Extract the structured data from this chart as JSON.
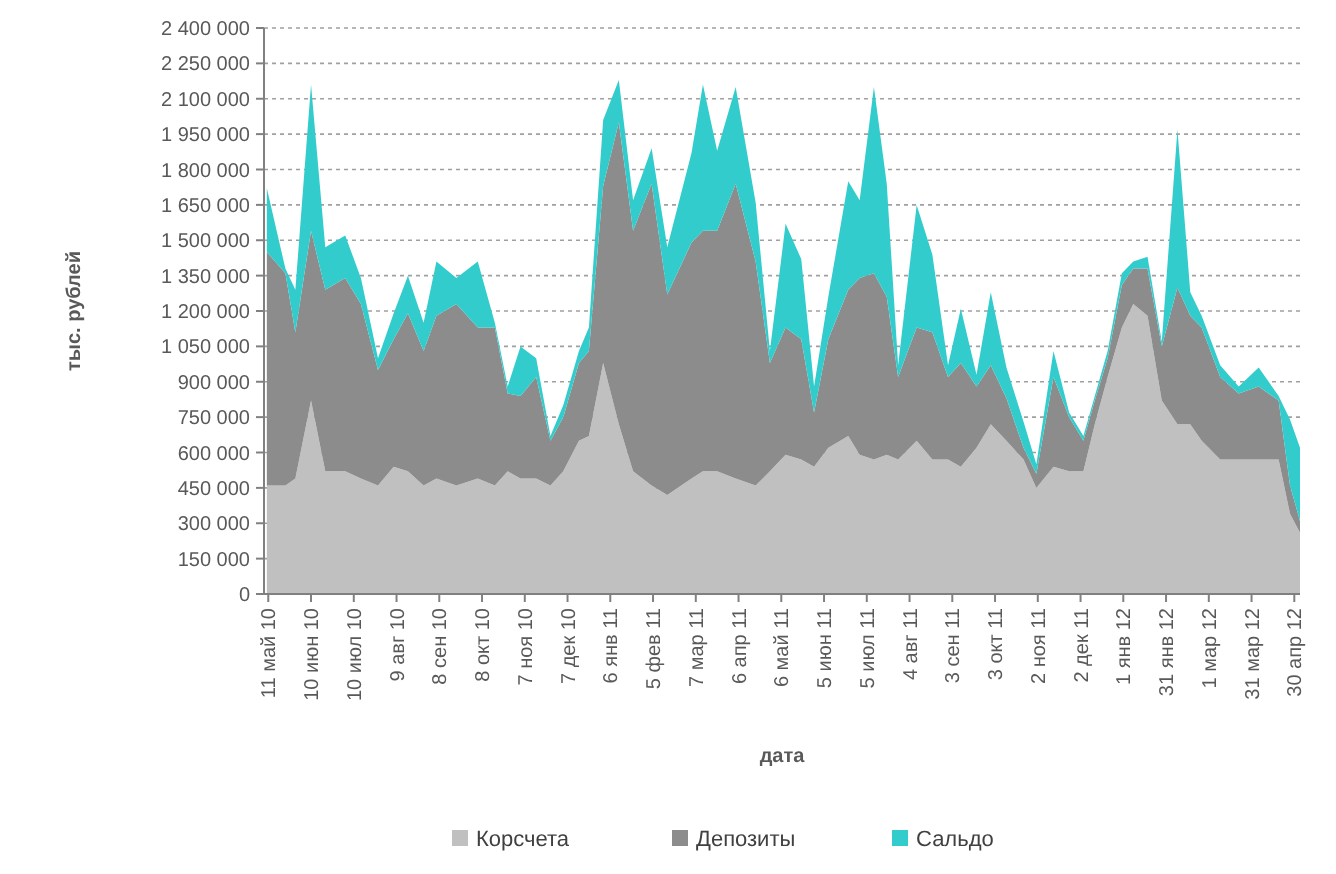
{
  "chart_data": {
    "type": "area",
    "stacked": true,
    "xlabel": "дата",
    "ylabel": "тыс. рублей",
    "x": [
      "2010-05-10",
      "2010-05-23",
      "2010-05-30",
      "2010-06-10",
      "2010-06-20",
      "2010-07-04",
      "2010-07-15",
      "2010-07-27",
      "2010-08-07",
      "2010-08-17",
      "2010-08-28",
      "2010-09-06",
      "2010-09-20",
      "2010-10-05",
      "2010-10-17",
      "2010-10-26",
      "2010-11-04",
      "2010-11-15",
      "2010-11-25",
      "2010-12-04",
      "2010-12-15",
      "2010-12-22",
      "2011-01-01",
      "2011-01-12",
      "2011-01-22",
      "2011-02-04",
      "2011-02-15",
      "2011-03-04",
      "2011-03-12",
      "2011-03-22",
      "2011-04-04",
      "2011-04-18",
      "2011-04-28",
      "2011-05-09",
      "2011-05-20",
      "2011-05-29",
      "2011-06-08",
      "2011-06-22",
      "2011-06-30",
      "2011-07-10",
      "2011-07-19",
      "2011-07-27",
      "2011-08-09",
      "2011-08-20",
      "2011-08-31",
      "2011-09-09",
      "2011-09-20",
      "2011-09-30",
      "2011-10-11",
      "2011-10-23",
      "2011-11-01",
      "2011-11-13",
      "2011-11-24",
      "2011-12-04",
      "2011-12-12",
      "2011-12-21",
      "2011-12-31",
      "2012-01-08",
      "2012-01-18",
      "2012-01-28",
      "2012-02-08",
      "2012-02-17",
      "2012-02-25",
      "2012-03-09",
      "2012-03-22",
      "2012-04-05",
      "2012-04-19",
      "2012-04-27",
      "2012-05-04"
    ],
    "series": [
      {
        "name": "Корсчета",
        "color": "#c0c0c0",
        "values": [
          460000,
          460000,
          490000,
          820000,
          520000,
          520000,
          490000,
          460000,
          540000,
          520000,
          460000,
          490000,
          460000,
          490000,
          460000,
          520000,
          490000,
          490000,
          460000,
          520000,
          650000,
          670000,
          980000,
          720000,
          520000,
          460000,
          420000,
          490000,
          520000,
          520000,
          490000,
          460000,
          520000,
          590000,
          570000,
          540000,
          620000,
          670000,
          590000,
          570000,
          590000,
          570000,
          650000,
          570000,
          570000,
          540000,
          620000,
          720000,
          650000,
          570000,
          450000,
          540000,
          520000,
          520000,
          720000,
          920000,
          1130000,
          1230000,
          1180000,
          820000,
          720000,
          720000,
          650000,
          570000,
          570000,
          570000,
          570000,
          340000,
          260000
        ]
      },
      {
        "name": "Депозиты",
        "color": "#8c8c8c",
        "values": [
          990000,
          900000,
          620000,
          720000,
          770000,
          820000,
          740000,
          490000,
          540000,
          670000,
          570000,
          690000,
          770000,
          640000,
          670000,
          330000,
          350000,
          430000,
          190000,
          230000,
          330000,
          360000,
          750000,
          1280000,
          1020000,
          1280000,
          850000,
          1000000,
          1020000,
          1020000,
          1250000,
          950000,
          460000,
          540000,
          510000,
          230000,
          460000,
          620000,
          750000,
          790000,
          670000,
          350000,
          480000,
          540000,
          350000,
          440000,
          260000,
          250000,
          180000,
          50000,
          60000,
          380000,
          230000,
          130000,
          100000,
          80000,
          180000,
          150000,
          200000,
          230000,
          580000,
          460000,
          480000,
          350000,
          280000,
          310000,
          250000,
          120000,
          50000
        ]
      },
      {
        "name": "Сальдо",
        "color": "#33cccc",
        "values": [
          270000,
          20000,
          180000,
          620000,
          180000,
          180000,
          110000,
          50000,
          110000,
          160000,
          120000,
          230000,
          110000,
          280000,
          20000,
          30000,
          210000,
          80000,
          20000,
          50000,
          50000,
          100000,
          280000,
          180000,
          130000,
          150000,
          200000,
          380000,
          620000,
          340000,
          410000,
          250000,
          50000,
          440000,
          340000,
          110000,
          180000,
          460000,
          330000,
          790000,
          480000,
          50000,
          520000,
          330000,
          50000,
          230000,
          50000,
          310000,
          130000,
          110000,
          40000,
          110000,
          20000,
          20000,
          20000,
          30000,
          50000,
          30000,
          50000,
          20000,
          670000,
          100000,
          50000,
          50000,
          30000,
          80000,
          20000,
          280000,
          310000
        ]
      }
    ],
    "xlim": [
      "2010-05-08",
      "2012-05-04"
    ],
    "xticks": [
      {
        "value": "2010-05-11",
        "label": "11 май 10"
      },
      {
        "value": "2010-06-10",
        "label": "10 июн 10"
      },
      {
        "value": "2010-07-10",
        "label": "10 июл 10"
      },
      {
        "value": "2010-08-09",
        "label": "9 авг 10"
      },
      {
        "value": "2010-09-08",
        "label": "8 сен 10"
      },
      {
        "value": "2010-10-08",
        "label": "8 окт 10"
      },
      {
        "value": "2010-11-07",
        "label": "7 ноя 10"
      },
      {
        "value": "2010-12-07",
        "label": "7 дек 10"
      },
      {
        "value": "2011-01-06",
        "label": "6 янв 11"
      },
      {
        "value": "2011-02-05",
        "label": "5 фев 11"
      },
      {
        "value": "2011-03-07",
        "label": "7 мар 11"
      },
      {
        "value": "2011-04-06",
        "label": "6 апр 11"
      },
      {
        "value": "2011-05-06",
        "label": "6 май 11"
      },
      {
        "value": "2011-06-05",
        "label": "5 июн 11"
      },
      {
        "value": "2011-07-05",
        "label": "5 июл 11"
      },
      {
        "value": "2011-08-04",
        "label": "4 авг 11"
      },
      {
        "value": "2011-09-03",
        "label": "3 сен 11"
      },
      {
        "value": "2011-10-03",
        "label": "3 окт 11"
      },
      {
        "value": "2011-11-02",
        "label": "2 ноя 11"
      },
      {
        "value": "2011-12-02",
        "label": "2 дек 11"
      },
      {
        "value": "2012-01-01",
        "label": "1 янв 12"
      },
      {
        "value": "2012-01-31",
        "label": "31 янв 12"
      },
      {
        "value": "2012-03-01",
        "label": "1 мар 12"
      },
      {
        "value": "2012-03-31",
        "label": "31 мар 12"
      },
      {
        "value": "2012-04-30",
        "label": "30 апр 12"
      }
    ],
    "ylim": [
      0,
      2400000
    ],
    "yticks": [
      0,
      {
        "value": 150000,
        "label": "150 000"
      },
      {
        "value": 300000,
        "label": "300 000"
      },
      {
        "value": 450000,
        "label": "450 000"
      },
      {
        "value": 600000,
        "label": "600 000"
      },
      {
        "value": 750000,
        "label": "750 000"
      },
      {
        "value": 900000,
        "label": "900 000"
      },
      {
        "value": 1050000,
        "label": "1 050 000"
      },
      {
        "value": 1200000,
        "label": "1 200 000"
      },
      {
        "value": 1350000,
        "label": "1 350 000"
      },
      {
        "value": 1500000,
        "label": "1 500 000"
      },
      {
        "value": 1650000,
        "label": "1 650 000"
      },
      {
        "value": 1800000,
        "label": "1 800 000"
      },
      {
        "value": 1950000,
        "label": "1 950 000"
      },
      {
        "value": 2100000,
        "label": "2 100 000"
      },
      {
        "value": 2250000,
        "label": "2 250 000"
      },
      {
        "value": 2400000,
        "label": "2 400 000"
      }
    ],
    "grid": "y",
    "legend": "bottom"
  }
}
